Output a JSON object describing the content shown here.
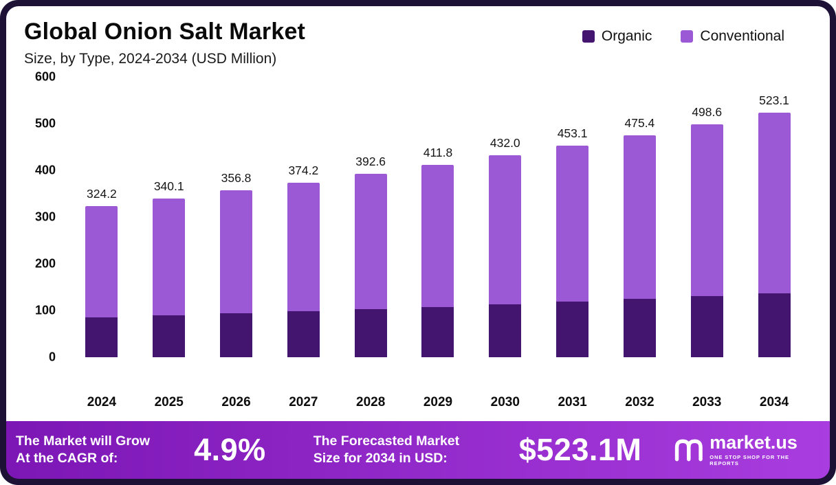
{
  "header": {
    "title": "Global Onion Salt Market",
    "subtitle": "Size, by Type, 2024-2034 (USD Million)"
  },
  "chart_data": {
    "type": "bar",
    "stacked": true,
    "title": "Global Onion Salt Market Size, by Type, 2024-2034 (USD Million)",
    "categories": [
      "2024",
      "2025",
      "2026",
      "2027",
      "2028",
      "2029",
      "2030",
      "2031",
      "2032",
      "2033",
      "2034"
    ],
    "series": [
      {
        "name": "Organic",
        "color": "#44156e",
        "values": [
          85.0,
          89.2,
          93.6,
          98.2,
          103.0,
          108.1,
          113.4,
          119.0,
          124.9,
          131.0,
          137.5
        ]
      },
      {
        "name": "Conventional",
        "color": "#9b59d6",
        "values": [
          239.2,
          250.9,
          263.2,
          276.0,
          289.6,
          303.7,
          318.6,
          334.1,
          350.5,
          367.6,
          385.6
        ]
      }
    ],
    "totals": [
      324.2,
      340.1,
      356.8,
      374.2,
      392.6,
      411.8,
      432.0,
      453.1,
      475.4,
      498.6,
      523.1
    ],
    "total_labels": [
      "324.2",
      "340.1",
      "356.8",
      "374.2",
      "392.6",
      "411.8",
      "432.0",
      "453.1",
      "475.4",
      "498.6",
      "523.1"
    ],
    "xlabel": "",
    "ylabel": "",
    "ylim": [
      0,
      600
    ],
    "y_ticks": [
      "600",
      "500",
      "400",
      "300",
      "200",
      "100",
      "0"
    ],
    "grid": false,
    "legend_position": "top-right"
  },
  "footer": {
    "cagr_line1": "The Market will Grow",
    "cagr_line2": "At the CAGR of:",
    "cagr_value": "4.9%",
    "forecast_line1": "The Forecasted Market",
    "forecast_line2": "Size for 2034 in USD:",
    "forecast_value": "$523.1M",
    "brand": "market.us",
    "brand_tagline": "ONE STOP SHOP FOR THE REPORTS"
  },
  "colors": {
    "frame": "#1d1135",
    "organic": "#44156e",
    "conventional": "#9b59d6",
    "footer_g1": "#7c16b5",
    "footer_g2": "#a93ddf"
  }
}
